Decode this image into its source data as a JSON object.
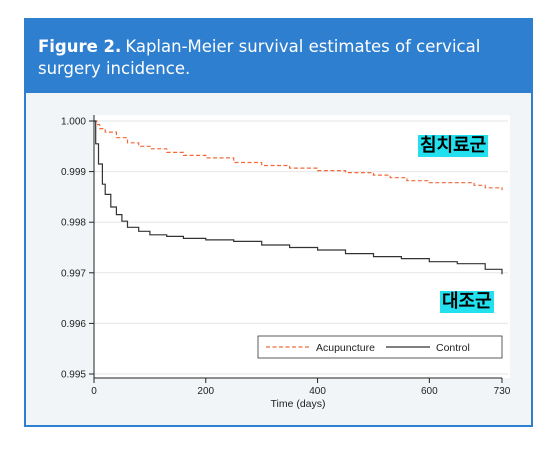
{
  "figure": {
    "number": "Figure 2.",
    "caption": "Kaplan-Meier survival estimates of cervical surgery incidence."
  },
  "annotations": {
    "acupuncture_group": "침치료군",
    "control_group": "대조군"
  },
  "colors": {
    "header_bg": "#2f7fd0",
    "acupuncture": "#f06a3a",
    "control": "#333333",
    "label_highlight": "#22e0ee"
  },
  "chart_data": {
    "type": "line",
    "title": "",
    "xlabel": "Time (days)",
    "ylabel": "",
    "xlim": [
      0,
      730
    ],
    "ylim": [
      0.995,
      1.0
    ],
    "x_ticks": [
      0,
      200,
      400,
      600,
      730
    ],
    "y_ticks": [
      "1.000",
      "0.999",
      "0.998",
      "0.997",
      "0.996",
      "0.995"
    ],
    "grid": true,
    "legend_position": "bottom-right",
    "series": [
      {
        "name": "Acupuncture",
        "style": "dashed",
        "x": [
          0,
          5,
          10,
          20,
          40,
          60,
          80,
          100,
          130,
          160,
          200,
          250,
          300,
          350,
          400,
          450,
          500,
          530,
          560,
          600,
          650,
          680,
          700,
          730
        ],
        "y": [
          1.0,
          0.99993,
          0.99985,
          0.99978,
          0.99967,
          0.99957,
          0.9995,
          0.99945,
          0.99938,
          0.99932,
          0.99927,
          0.99918,
          0.99912,
          0.99907,
          0.99902,
          0.99898,
          0.99893,
          0.99888,
          0.99882,
          0.99878,
          0.99878,
          0.99873,
          0.99868,
          0.99863
        ]
      },
      {
        "name": "Control",
        "style": "solid",
        "x": [
          0,
          3,
          8,
          15,
          20,
          30,
          40,
          50,
          60,
          80,
          100,
          130,
          160,
          200,
          250,
          300,
          350,
          400,
          450,
          500,
          550,
          600,
          650,
          700,
          730
        ],
        "y": [
          1.0,
          0.99955,
          0.99915,
          0.99875,
          0.99855,
          0.9983,
          0.99815,
          0.99802,
          0.9979,
          0.99782,
          0.99775,
          0.99772,
          0.99768,
          0.99765,
          0.99762,
          0.99755,
          0.9975,
          0.99745,
          0.99738,
          0.99732,
          0.99728,
          0.99722,
          0.99718,
          0.99707,
          0.99697
        ]
      }
    ]
  }
}
